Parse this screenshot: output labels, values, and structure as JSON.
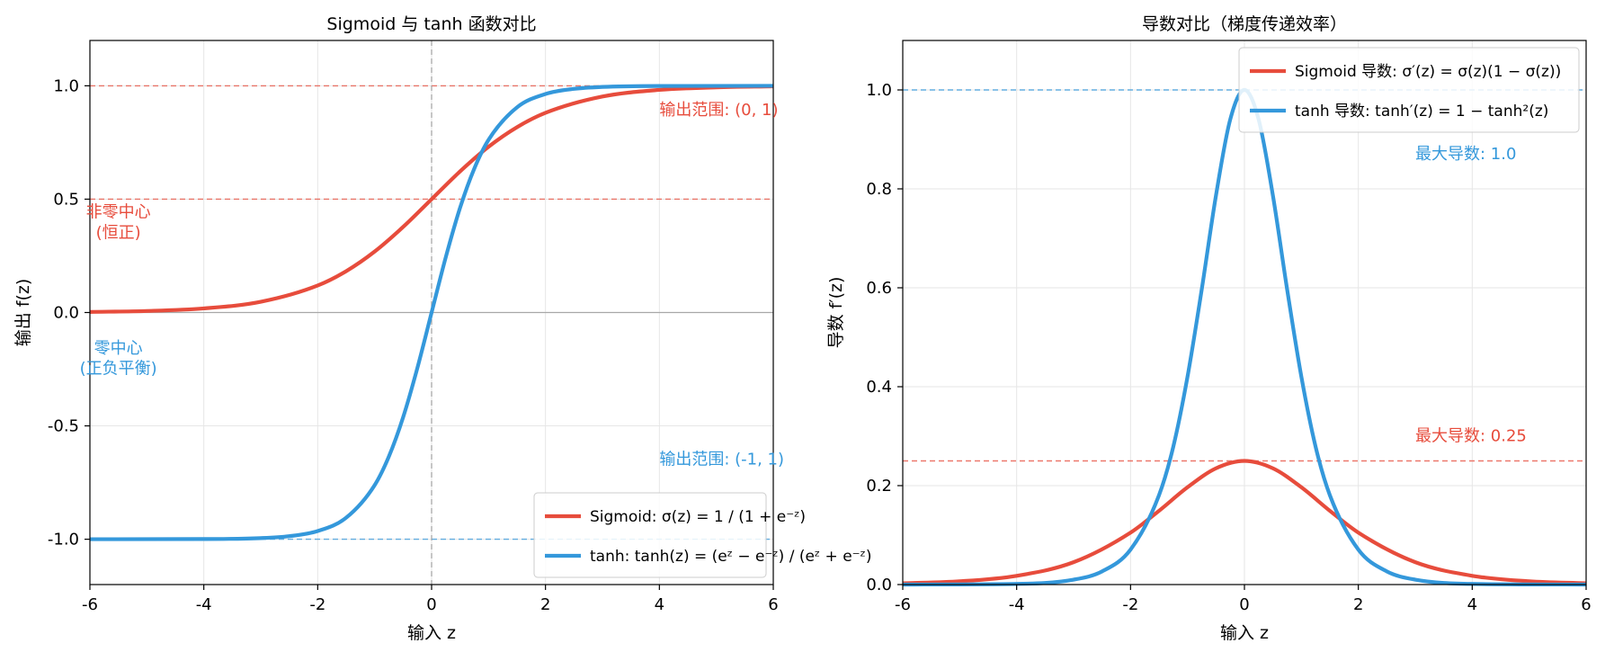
{
  "chart_data": [
    {
      "type": "line",
      "title": "Sigmoid 与 tanh 函数对比",
      "xlabel": "输入 z",
      "ylabel": "输出 f(z)",
      "xlim": [
        -6,
        6
      ],
      "ylim": [
        -1.2,
        1.2
      ],
      "xticks": [
        -6,
        -4,
        -2,
        0,
        2,
        4,
        6
      ],
      "xtick_labels": [
        "-6",
        "-4",
        "-2",
        "0",
        "2",
        "4",
        "6"
      ],
      "yticks": [
        -1.0,
        -0.5,
        0.0,
        0.5,
        1.0
      ],
      "ytick_labels": [
        "-1.0",
        "-0.5",
        "0.0",
        "0.5",
        "1.0"
      ],
      "grid": true,
      "legend_position": "bottom-right",
      "series": [
        {
          "name": "Sigmoid: σ(z) = 1 / (1 + e⁻ᶻ)",
          "color": "#e74c3c",
          "x": [
            -6,
            -5,
            -4,
            -3,
            -2,
            -1.5,
            -1,
            -0.5,
            0,
            0.5,
            1,
            1.5,
            2,
            3,
            4,
            5,
            6
          ],
          "y": [
            0.0025,
            0.0067,
            0.018,
            0.0474,
            0.1192,
            0.1824,
            0.2689,
            0.3775,
            0.5,
            0.6225,
            0.7311,
            0.8176,
            0.8808,
            0.9526,
            0.982,
            0.9933,
            0.9975
          ]
        },
        {
          "name": "tanh: tanh(z) = (eᶻ − e⁻ᶻ) / (eᶻ + e⁻ᶻ)",
          "color": "#3498db",
          "x": [
            -6,
            -4,
            -3,
            -2.5,
            -2,
            -1.5,
            -1,
            -0.75,
            -0.5,
            -0.25,
            0,
            0.25,
            0.5,
            0.75,
            1,
            1.5,
            2,
            2.5,
            3,
            4,
            6
          ],
          "y": [
            -1.0,
            -0.9993,
            -0.9951,
            -0.9866,
            -0.964,
            -0.9051,
            -0.7616,
            -0.6351,
            -0.4621,
            -0.2449,
            0.0,
            0.2449,
            0.4621,
            0.6351,
            0.7616,
            0.9051,
            0.964,
            0.9866,
            0.9951,
            0.9993,
            1.0
          ]
        }
      ],
      "reference_lines": [
        {
          "axis": "y",
          "value": 1.0,
          "color": "#e74c3c"
        },
        {
          "axis": "y",
          "value": 0.5,
          "color": "#e74c3c"
        },
        {
          "axis": "y",
          "value": -1.0,
          "color": "#3498db"
        },
        {
          "axis": "y",
          "value": 0.0,
          "color": "#999999"
        },
        {
          "axis": "x",
          "value": 0.0,
          "color": "#999999"
        }
      ],
      "annotations": [
        {
          "text": "输出范围: (0, 1)",
          "x": 4.0,
          "y": 0.87,
          "color": "#e74c3c"
        },
        {
          "text": "输出范围: (-1, 1)",
          "x": 4.0,
          "y": -0.67,
          "color": "#3498db"
        },
        {
          "text": "非零中心",
          "x": -5.5,
          "y": 0.42,
          "color": "#e74c3c"
        },
        {
          "text": "(恒正)",
          "x": -5.5,
          "y": 0.33,
          "color": "#e74c3c"
        },
        {
          "text": "零中心",
          "x": -5.5,
          "y": -0.18,
          "color": "#3498db"
        },
        {
          "text": "(正负平衡)",
          "x": -5.5,
          "y": -0.27,
          "color": "#3498db"
        }
      ]
    },
    {
      "type": "line",
      "title": "导数对比（梯度传递效率）",
      "xlabel": "输入 z",
      "ylabel": "导数 f′(z)",
      "xlim": [
        -6,
        6
      ],
      "ylim": [
        0,
        1.1
      ],
      "xticks": [
        -6,
        -4,
        -2,
        0,
        2,
        4,
        6
      ],
      "xtick_labels": [
        "-6",
        "-4",
        "-2",
        "0",
        "2",
        "4",
        "6"
      ],
      "yticks": [
        0.0,
        0.2,
        0.4,
        0.6,
        0.8,
        1.0
      ],
      "ytick_labels": [
        "0.0",
        "0.2",
        "0.4",
        "0.6",
        "0.8",
        "1.0"
      ],
      "grid": true,
      "legend_position": "top-right",
      "series": [
        {
          "name": "Sigmoid 导数: σ′(z) = σ(z)(1 − σ(z))",
          "color": "#e74c3c",
          "x": [
            -6,
            -5,
            -4,
            -3,
            -2,
            -1.5,
            -1,
            -0.5,
            0,
            0.5,
            1,
            1.5,
            2,
            3,
            4,
            5,
            6
          ],
          "y": [
            0.0025,
            0.0066,
            0.0177,
            0.0452,
            0.105,
            0.1491,
            0.1966,
            0.235,
            0.25,
            0.235,
            0.1966,
            0.1491,
            0.105,
            0.0452,
            0.0177,
            0.0066,
            0.0025
          ]
        },
        {
          "name": "tanh 导数: tanh′(z) = 1 − tanh²(z)",
          "color": "#3498db",
          "x": [
            -6,
            -4,
            -3,
            -2.5,
            -2,
            -1.5,
            -1.25,
            -1,
            -0.75,
            -0.5,
            -0.25,
            0,
            0.25,
            0.5,
            0.75,
            1,
            1.25,
            1.5,
            2,
            2.5,
            3,
            4,
            6
          ],
          "y": [
            0.0,
            0.0013,
            0.0099,
            0.0266,
            0.0707,
            0.1807,
            0.2785,
            0.42,
            0.5966,
            0.7864,
            0.94,
            1.0,
            0.94,
            0.7864,
            0.5966,
            0.42,
            0.2785,
            0.1807,
            0.0707,
            0.0266,
            0.0099,
            0.0013,
            0.0
          ]
        }
      ],
      "reference_lines": [
        {
          "axis": "y",
          "value": 1.0,
          "color": "#3498db"
        },
        {
          "axis": "y",
          "value": 0.25,
          "color": "#e74c3c"
        }
      ],
      "annotations": [
        {
          "text": "最大导数: 1.0",
          "x": 3.0,
          "y": 0.86,
          "color": "#3498db"
        },
        {
          "text": "最大导数: 0.25",
          "x": 3.0,
          "y": 0.29,
          "color": "#e74c3c"
        }
      ]
    }
  ]
}
